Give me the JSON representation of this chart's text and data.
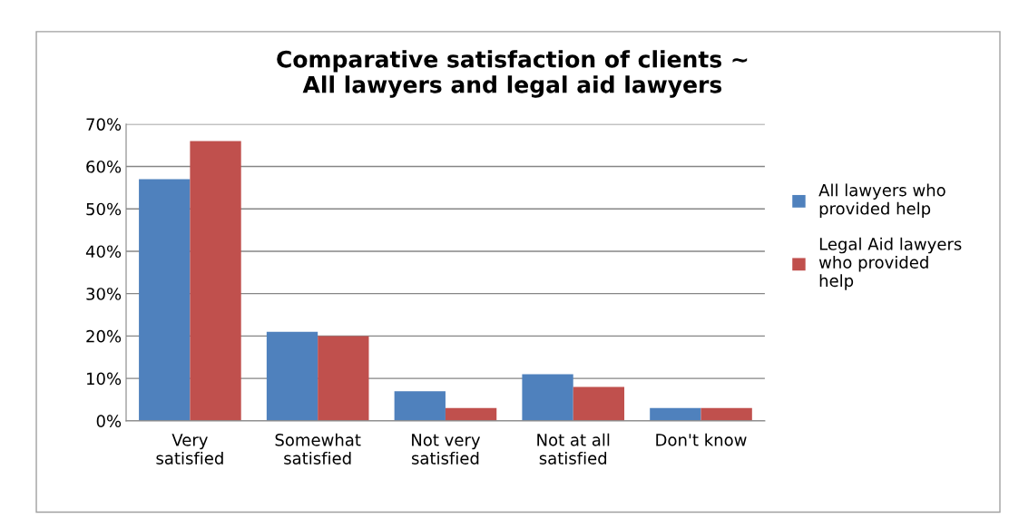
{
  "chart_data": {
    "type": "bar",
    "title": "Comparative satisfaction of clients ~\nAll lawyers and legal aid lawyers",
    "categories": [
      "Very\nsatisfied",
      "Somewhat\nsatisfied",
      "Not very\nsatisfied",
      "Not at all\nsatisfied",
      "Don't know"
    ],
    "series": [
      {
        "name": "All lawyers who\nprovided help",
        "color": "#4f81bd",
        "values": [
          57,
          21,
          7,
          11,
          3
        ]
      },
      {
        "name": "Legal Aid lawyers\nwho provided\nhelp",
        "color": "#c0504d",
        "values": [
          66,
          20,
          3,
          8,
          3
        ]
      }
    ],
    "ylim": [
      0,
      70
    ],
    "yticks": [
      {
        "value": 0,
        "label": "0%"
      },
      {
        "value": 10,
        "label": "10%"
      },
      {
        "value": 20,
        "label": "20%"
      },
      {
        "value": 30,
        "label": "30%"
      },
      {
        "value": 40,
        "label": "40%"
      },
      {
        "value": 50,
        "label": "50%"
      },
      {
        "value": 60,
        "label": "60%"
      },
      {
        "value": 70,
        "label": "70%"
      }
    ],
    "grid": "y",
    "legend": "right"
  }
}
